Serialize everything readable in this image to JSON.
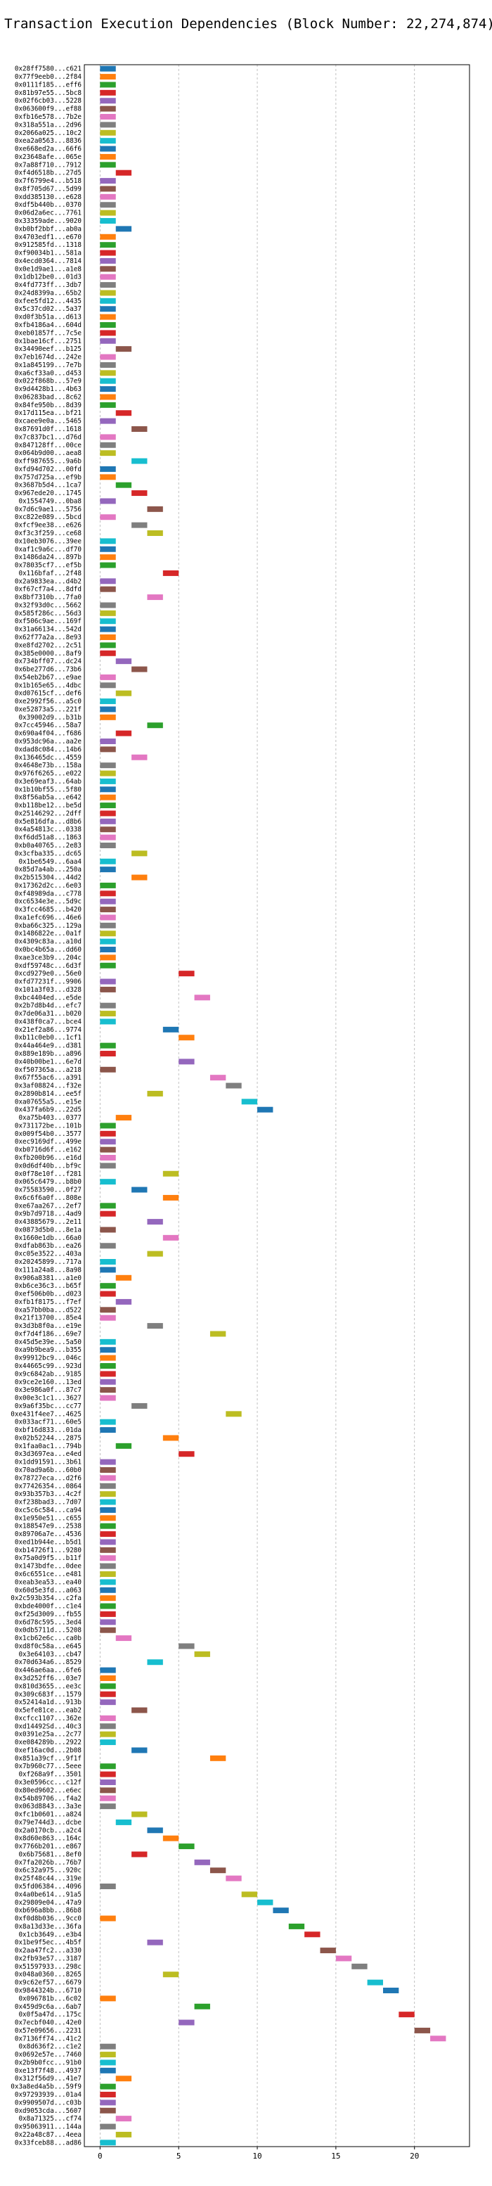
{
  "chart_data": {
    "type": "bar",
    "orientation": "horizontal-gantt",
    "title": "Transaction Execution Dependencies (Block Number: 22,274,874)",
    "xlabel": "",
    "ylabel": "",
    "xlim": [
      -1,
      23.5
    ],
    "xticks": [
      0,
      5,
      10,
      15,
      20
    ],
    "grid": true,
    "colors": [
      "#1f77b4",
      "#ff7f0e",
      "#2ca02c",
      "#d62728",
      "#9467bd",
      "#8c564b",
      "#e377c2",
      "#7f7f7f",
      "#bcbd22",
      "#17becf"
    ],
    "transactions": [
      {
        "label": "0x28ff7580...c621",
        "start": 0
      },
      {
        "label": "0x77f9eeb0...2f84",
        "start": 0
      },
      {
        "label": "0x0111f185...eff6",
        "start": 0
      },
      {
        "label": "0x81b97e55...5bc8",
        "start": 0
      },
      {
        "label": "0x02f6cb03...5228",
        "start": 0
      },
      {
        "label": "0x063600f9...ef88",
        "start": 0
      },
      {
        "label": "0xfb16e578...7b2e",
        "start": 0
      },
      {
        "label": "0x318a551a...2d96",
        "start": 0
      },
      {
        "label": "0x2066a025...10c2",
        "start": 0
      },
      {
        "label": "0xea2a0563...8836",
        "start": 0
      },
      {
        "label": "0xe668ed2a...66f6",
        "start": 0
      },
      {
        "label": "0x23648afe...065e",
        "start": 0
      },
      {
        "label": "0x7a88f710...7912",
        "start": 0
      },
      {
        "label": "0xf4d6518b...27d5",
        "start": 1
      },
      {
        "label": "0x7f6799e4...b518",
        "start": 0
      },
      {
        "label": "0x8f705d67...5d99",
        "start": 0
      },
      {
        "label": "0xdd385130...e628",
        "start": 0
      },
      {
        "label": "0xdf5b440b...0370",
        "start": 0
      },
      {
        "label": "0x06d2a6ec...7761",
        "start": 0
      },
      {
        "label": "0x33359ade...9020",
        "start": 0
      },
      {
        "label": "0xb0bf2bbf...ab0a",
        "start": 1
      },
      {
        "label": "0x4703edf1...e670",
        "start": 0
      },
      {
        "label": "0x912585fd...1318",
        "start": 0
      },
      {
        "label": "0xf90034b1...581a",
        "start": 0
      },
      {
        "label": "0x4ecd0364...7814",
        "start": 0
      },
      {
        "label": "0x0e1d9ae1...a1e8",
        "start": 0
      },
      {
        "label": "0x1db12be0...01d3",
        "start": 0
      },
      {
        "label": "0x4fd773ff...3db7",
        "start": 0
      },
      {
        "label": "0x24d8399a...65b2",
        "start": 0
      },
      {
        "label": "0xfee5fd12...4435",
        "start": 0
      },
      {
        "label": "0x5c37cd02...5a37",
        "start": 0
      },
      {
        "label": "0xd0f3b51a...d613",
        "start": 0
      },
      {
        "label": "0xfb4186a4...604d",
        "start": 0
      },
      {
        "label": "0xeb01857f...7c5e",
        "start": 0
      },
      {
        "label": "0x1bae16cf...2751",
        "start": 0
      },
      {
        "label": "0x34490eef...b125",
        "start": 1
      },
      {
        "label": "0x7eb1674d...242e",
        "start": 0
      },
      {
        "label": "0x1a845199...7e7b",
        "start": 0
      },
      {
        "label": "0xa6cf33a0...d453",
        "start": 0
      },
      {
        "label": "0x022f868b...57e9",
        "start": 0
      },
      {
        "label": "0x9d4428b1...4b63",
        "start": 0
      },
      {
        "label": "0x06283bad...8c62",
        "start": 0
      },
      {
        "label": "0x84fe950b...8d39",
        "start": 0
      },
      {
        "label": "0x17d115ea...bf21",
        "start": 1
      },
      {
        "label": "0xcaee9e0a...5465",
        "start": 0
      },
      {
        "label": "0x87691d0f...1618",
        "start": 2
      },
      {
        "label": "0x7c837bc1...d76d",
        "start": 0
      },
      {
        "label": "0x847128ff...00ce",
        "start": 0
      },
      {
        "label": "0x064b9d00...aea8",
        "start": 0
      },
      {
        "label": "0xff987655...9a6b",
        "start": 2
      },
      {
        "label": "0xfd94d702...00fd",
        "start": 0
      },
      {
        "label": "0x757d725a...ef9b",
        "start": 0
      },
      {
        "label": "0x3687b5d4...1ca7",
        "start": 1
      },
      {
        "label": "0x967ede20...1745",
        "start": 2
      },
      {
        "label": "0x1554749...0ba8",
        "start": 0
      },
      {
        "label": "0x7d6c9ae1...5756",
        "start": 3
      },
      {
        "label": "0xc822e089...5bcd",
        "start": 0
      },
      {
        "label": "0xfcf9ee38...e626",
        "start": 2
      },
      {
        "label": "0xf3c3f259...ce68",
        "start": 3
      },
      {
        "label": "0x10eb3076...39ee",
        "start": 0
      },
      {
        "label": "0xaf1c9a6c...df70",
        "start": 0
      },
      {
        "label": "0x1486da24...897b",
        "start": 0
      },
      {
        "label": "0x78035cf7...ef5b",
        "start": 0
      },
      {
        "label": "0x116bfaf...2f48",
        "start": 4
      },
      {
        "label": "0x2a9833ea...d4b2",
        "start": 0
      },
      {
        "label": "0xf67cf7a4...8dfd",
        "start": 0
      },
      {
        "label": "0x8bf7310b...7fa0",
        "start": 3
      },
      {
        "label": "0x32f93d0c...5662",
        "start": 0
      },
      {
        "label": "0x585f286c...56d3",
        "start": 0
      },
      {
        "label": "0xf506c9ae...169f",
        "start": 0
      },
      {
        "label": "0x31a66134...542d",
        "start": 0
      },
      {
        "label": "0x62f77a2a...8e93",
        "start": 0
      },
      {
        "label": "0xe8fd2702...2c51",
        "start": 0
      },
      {
        "label": "0x385e0000...8af9",
        "start": 0
      },
      {
        "label": "0x734bff07...dc24",
        "start": 1
      },
      {
        "label": "0x6be277d6...73b6",
        "start": 2
      },
      {
        "label": "0x54eb2b67...e9ae",
        "start": 0
      },
      {
        "label": "0x1b165e65...4dbc",
        "start": 0
      },
      {
        "label": "0xd07615cf...def6",
        "start": 1
      },
      {
        "label": "0xe2992f56...a5c0",
        "start": 0
      },
      {
        "label": "0xe52873a5...221f",
        "start": 0
      },
      {
        "label": "0x39002d9...b31b",
        "start": 0
      },
      {
        "label": "0x7cc45946...58a7",
        "start": 3
      },
      {
        "label": "0x690a4f04...f686",
        "start": 1
      },
      {
        "label": "0x953dc96a...aa2e",
        "start": 0
      },
      {
        "label": "0xdad8c084...14b6",
        "start": 0
      },
      {
        "label": "0x136465dc...4559",
        "start": 2
      },
      {
        "label": "0x4648e73b...158a",
        "start": 0
      },
      {
        "label": "0x976f6265...e022",
        "start": 0
      },
      {
        "label": "0x3e69eaf3...64ab",
        "start": 0
      },
      {
        "label": "0x1b10bf55...5f80",
        "start": 0
      },
      {
        "label": "0x8f56ab5a...e642",
        "start": 0
      },
      {
        "label": "0xb118be12...be5d",
        "start": 0
      },
      {
        "label": "0x25146292...2dff",
        "start": 0
      },
      {
        "label": "0x5e816dfa...d8b6",
        "start": 0
      },
      {
        "label": "0x4a54813c...0338",
        "start": 0
      },
      {
        "label": "0xf6dd51a8...1863",
        "start": 0
      },
      {
        "label": "0xb0a40765...2e83",
        "start": 0
      },
      {
        "label": "0x3cfba335...dc65",
        "start": 2
      },
      {
        "label": "0x1be6549...6aa4",
        "start": 0
      },
      {
        "label": "0x85d7a4ab...250a",
        "start": 0
      },
      {
        "label": "0x2b515304...44d2",
        "start": 2
      },
      {
        "label": "0x17362d2c...6e03",
        "start": 0
      },
      {
        "label": "0xf48989da...c778",
        "start": 0
      },
      {
        "label": "0xc6534e3e...5d9c",
        "start": 0
      },
      {
        "label": "0x3fcc4685...b420",
        "start": 0
      },
      {
        "label": "0xa1efc696...46e6",
        "start": 0
      },
      {
        "label": "0xba66c325...129a",
        "start": 0
      },
      {
        "label": "0x1486822e...0a1f",
        "start": 0
      },
      {
        "label": "0x4309c83a...a10d",
        "start": 0
      },
      {
        "label": "0x0bc4b65a...dd60",
        "start": 0
      },
      {
        "label": "0xae3ce3b9...204c",
        "start": 0
      },
      {
        "label": "0xdf59748c...6d3f",
        "start": 0
      },
      {
        "label": "0xcd9279e0...56e0",
        "start": 5
      },
      {
        "label": "0xfd77231f...9906",
        "start": 0
      },
      {
        "label": "0x101a3f03...d328",
        "start": 0
      },
      {
        "label": "0xbc4404ed...e5de",
        "start": 6
      },
      {
        "label": "0x2b7d8b4d...efc7",
        "start": 0
      },
      {
        "label": "0x7de06a31...b020",
        "start": 0
      },
      {
        "label": "0x438f0ca7...bce4",
        "start": 0
      },
      {
        "label": "0x21ef2a86...9774",
        "start": 4
      },
      {
        "label": "0xb11c0eb0...1cf1",
        "start": 5
      },
      {
        "label": "0x44a464e9...d381",
        "start": 0
      },
      {
        "label": "0x889e189b...a896",
        "start": 0
      },
      {
        "label": "0x40b00be1...6e7d",
        "start": 5
      },
      {
        "label": "0xf507365a...a218",
        "start": 0
      },
      {
        "label": "0x67f55ac6...a391",
        "start": 7
      },
      {
        "label": "0x3af08824...f32e",
        "start": 8
      },
      {
        "label": "0x2890b814...ee5f",
        "start": 3
      },
      {
        "label": "0xa07655a5...e15e",
        "start": 9
      },
      {
        "label": "0x437fa6b9...22d5",
        "start": 10
      },
      {
        "label": "0xa75b403...0377",
        "start": 1
      },
      {
        "label": "0x731172be...101b",
        "start": 0
      },
      {
        "label": "0x009f54b0...3577",
        "start": 0
      },
      {
        "label": "0xec9169df...499e",
        "start": 0
      },
      {
        "label": "0xb0716d6f...e162",
        "start": 0
      },
      {
        "label": "0xfb200b96...e16d",
        "start": 0
      },
      {
        "label": "0x0d6df40b...bf9c",
        "start": 0
      },
      {
        "label": "0x0f78e10f...f281",
        "start": 4
      },
      {
        "label": "0x065c6479...b8b0",
        "start": 0
      },
      {
        "label": "0x75583590...0f27",
        "start": 2
      },
      {
        "label": "0x6c6f6a0f...808e",
        "start": 4
      },
      {
        "label": "0xe67aa267...2ef7",
        "start": 0
      },
      {
        "label": "0x9b7d9718...4ad9",
        "start": 0
      },
      {
        "label": "0x43885679...2e11",
        "start": 3
      },
      {
        "label": "0x0873d5b0...8e1a",
        "start": 0
      },
      {
        "label": "0x1660e1db...66a0",
        "start": 4
      },
      {
        "label": "0xdfab863b...ea26",
        "start": 0
      },
      {
        "label": "0xc05e3522...403a",
        "start": 3
      },
      {
        "label": "0x20245899...717a",
        "start": 0
      },
      {
        "label": "0x111a24a8...8a98",
        "start": 0
      },
      {
        "label": "0x906a8381...a1e0",
        "start": 1
      },
      {
        "label": "0xb6ce36c3...b65f",
        "start": 0
      },
      {
        "label": "0xef506b0b...d023",
        "start": 0
      },
      {
        "label": "0xfb1f8175...f7ef",
        "start": 1
      },
      {
        "label": "0xa57bb0ba...d522",
        "start": 0
      },
      {
        "label": "0x21f13700...85e4",
        "start": 0
      },
      {
        "label": "0x3d3b8f0a...e19e",
        "start": 3
      },
      {
        "label": "0xf7d4f186...69e7",
        "start": 7
      },
      {
        "label": "0x45d5e39e...5a50",
        "start": 0
      },
      {
        "label": "0xa9b9bea9...b355",
        "start": 0
      },
      {
        "label": "0x99912bc9...046c",
        "start": 0
      },
      {
        "label": "0x44665c99...923d",
        "start": 0
      },
      {
        "label": "0x9c6842ab...9185",
        "start": 0
      },
      {
        "label": "0x9ce2e160...13ed",
        "start": 0
      },
      {
        "label": "0x3e986a0f...87c7",
        "start": 0
      },
      {
        "label": "0x00e3c1c1...3627",
        "start": 0
      },
      {
        "label": "0x9a6f35bc...cc77",
        "start": 2
      },
      {
        "label": "0xe431f4ee7...4625",
        "start": 8
      },
      {
        "label": "0x033acf71...60e5",
        "start": 0
      },
      {
        "label": "0xbf16d833...01da",
        "start": 0
      },
      {
        "label": "0x02b52244...2875",
        "start": 4
      },
      {
        "label": "0x1faa0ac1...794b",
        "start": 1
      },
      {
        "label": "0x3d3697ea...e4ed",
        "start": 5
      },
      {
        "label": "0x1dd91591...3b61",
        "start": 0
      },
      {
        "label": "0x70ad9a6b...60b0",
        "start": 0
      },
      {
        "label": "0x78727eca...d2f6",
        "start": 0
      },
      {
        "label": "0x77426354...0864",
        "start": 0
      },
      {
        "label": "0x93b357b3...4c2f",
        "start": 0
      },
      {
        "label": "0xf238bad3...7d07",
        "start": 0
      },
      {
        "label": "0xc5c6c584...ca94",
        "start": 0
      },
      {
        "label": "0x1e950e51...c655",
        "start": 0
      },
      {
        "label": "0x188547e9...2538",
        "start": 0
      },
      {
        "label": "0x89706a7e...4536",
        "start": 0
      },
      {
        "label": "0xed1b944e...b5d1",
        "start": 0
      },
      {
        "label": "0xb14726f1...9280",
        "start": 0
      },
      {
        "label": "0x75a0d9f5...b11f",
        "start": 0
      },
      {
        "label": "0x1473bdfe...0dee",
        "start": 0
      },
      {
        "label": "0x6c6551ce...e481",
        "start": 0
      },
      {
        "label": "0xeab3ea53...ea40",
        "start": 0
      },
      {
        "label": "0x60d5e3fd...a063",
        "start": 0
      },
      {
        "label": "0x2c593b354...c2fa",
        "start": 0
      },
      {
        "label": "0xbde4000f...c1e4",
        "start": 0
      },
      {
        "label": "0xf25d3009...fb55",
        "start": 0
      },
      {
        "label": "0x6d78c595...3ed4",
        "start": 0
      },
      {
        "label": "0x0db5711d...5208",
        "start": 0
      },
      {
        "label": "0x1cb62e6c...ca0b",
        "start": 1
      },
      {
        "label": "0xd8f0c58a...e645",
        "start": 5
      },
      {
        "label": "0x3e64103...cb47",
        "start": 6
      },
      {
        "label": "0x70d634a6...8529",
        "start": 3
      },
      {
        "label": "0x446ae6aa...6fe6",
        "start": 0
      },
      {
        "label": "0x3d252ff6...03e7",
        "start": 0
      },
      {
        "label": "0x810d3655...ee3c",
        "start": 0
      },
      {
        "label": "0x309c683f...1579",
        "start": 0
      },
      {
        "label": "0x52414a1d...913b",
        "start": 0
      },
      {
        "label": "0x5efe81ce...eab2",
        "start": 2
      },
      {
        "label": "0xcfcc1107...362e",
        "start": 0
      },
      {
        "label": "0xd14492Sd...40c3",
        "start": 0
      },
      {
        "label": "0x0391e25a...2c77",
        "start": 0
      },
      {
        "label": "0xe084289b...2922",
        "start": 0
      },
      {
        "label": "0xef16ac0d...2b08",
        "start": 2
      },
      {
        "label": "0x851a39cf...9f1f",
        "start": 7
      },
      {
        "label": "0x7b960c77...5eee",
        "start": 0
      },
      {
        "label": "0xf268a9f...3501",
        "start": 0
      },
      {
        "label": "0x3e0596cc...c12f",
        "start": 0
      },
      {
        "label": "0x80ed9602...e6ec",
        "start": 0
      },
      {
        "label": "0x54b89706...f4a2",
        "start": 0
      },
      {
        "label": "0x063d8843...3a3e",
        "start": 0
      },
      {
        "label": "0xfc1b0601...a824",
        "start": 2
      },
      {
        "label": "0x79e744d3...dcbe",
        "start": 1
      },
      {
        "label": "0x2a0170cb...a2c4",
        "start": 3
      },
      {
        "label": "0x8d60e863...164c",
        "start": 4
      },
      {
        "label": "0x7766b201...e867",
        "start": 5
      },
      {
        "label": "0x6b75681...8ef0",
        "start": 2
      },
      {
        "label": "0x7fa2026b...76b7",
        "start": 6
      },
      {
        "label": "0x6c32a975...920c",
        "start": 7
      },
      {
        "label": "0x25f48c44...319e",
        "start": 8
      },
      {
        "label": "0x5fd06384...4096",
        "start": 0
      },
      {
        "label": "0x4a0be614...91a5",
        "start": 9
      },
      {
        "label": "0x29809e04...47a9",
        "start": 10
      },
      {
        "label": "0xb696a8bb...86b8",
        "start": 11
      },
      {
        "label": "0xf0d8b036...9cc0",
        "start": 0
      },
      {
        "label": "0x8a13d33e...36fa",
        "start": 12
      },
      {
        "label": "0x1cb3649...e3b4",
        "start": 13
      },
      {
        "label": "0x1be9f5ec...4b5f",
        "start": 3
      },
      {
        "label": "0x2aa47fc2...a330",
        "start": 14
      },
      {
        "label": "0x2fb93e57...3187",
        "start": 15
      },
      {
        "label": "0x51597933...298c",
        "start": 16
      },
      {
        "label": "0x048a0360...8265",
        "start": 4
      },
      {
        "label": "0x9c62ef57...6679",
        "start": 17
      },
      {
        "label": "0x9844324b...6710",
        "start": 18
      },
      {
        "label": "0x096781b...6c02",
        "start": 0
      },
      {
        "label": "0x459d9c6a...6ab7",
        "start": 6
      },
      {
        "label": "0x0f5a47d...175c",
        "start": 19
      },
      {
        "label": "0x7ecbf040...42e0",
        "start": 5
      },
      {
        "label": "0x57e09656...2231",
        "start": 20
      },
      {
        "label": "0x7136ff74...41c2",
        "start": 21
      },
      {
        "label": "0x8d636f2...c1e2",
        "start": 0
      },
      {
        "label": "0x0692e57e...7460",
        "start": 0
      },
      {
        "label": "0x2b9b0fcc...91b0",
        "start": 0
      },
      {
        "label": "0xe13f7f48...4937",
        "start": 0
      },
      {
        "label": "0x312f56d9...41e7",
        "start": 1
      },
      {
        "label": "0x3a8ed4a5b...59f9",
        "start": 0
      },
      {
        "label": "0x97293939...01a4",
        "start": 0
      },
      {
        "label": "0x9909507d...c03b",
        "start": 0
      },
      {
        "label": "0xd9053cda...5607",
        "start": 0
      },
      {
        "label": "0x8a71325...cf74",
        "start": 1
      },
      {
        "label": "0x95063911...144a",
        "start": 0
      },
      {
        "label": "0x22a48c87...4eea",
        "start": 1
      },
      {
        "label": "0x33fceb88...ad86",
        "start": 0
      }
    ]
  }
}
